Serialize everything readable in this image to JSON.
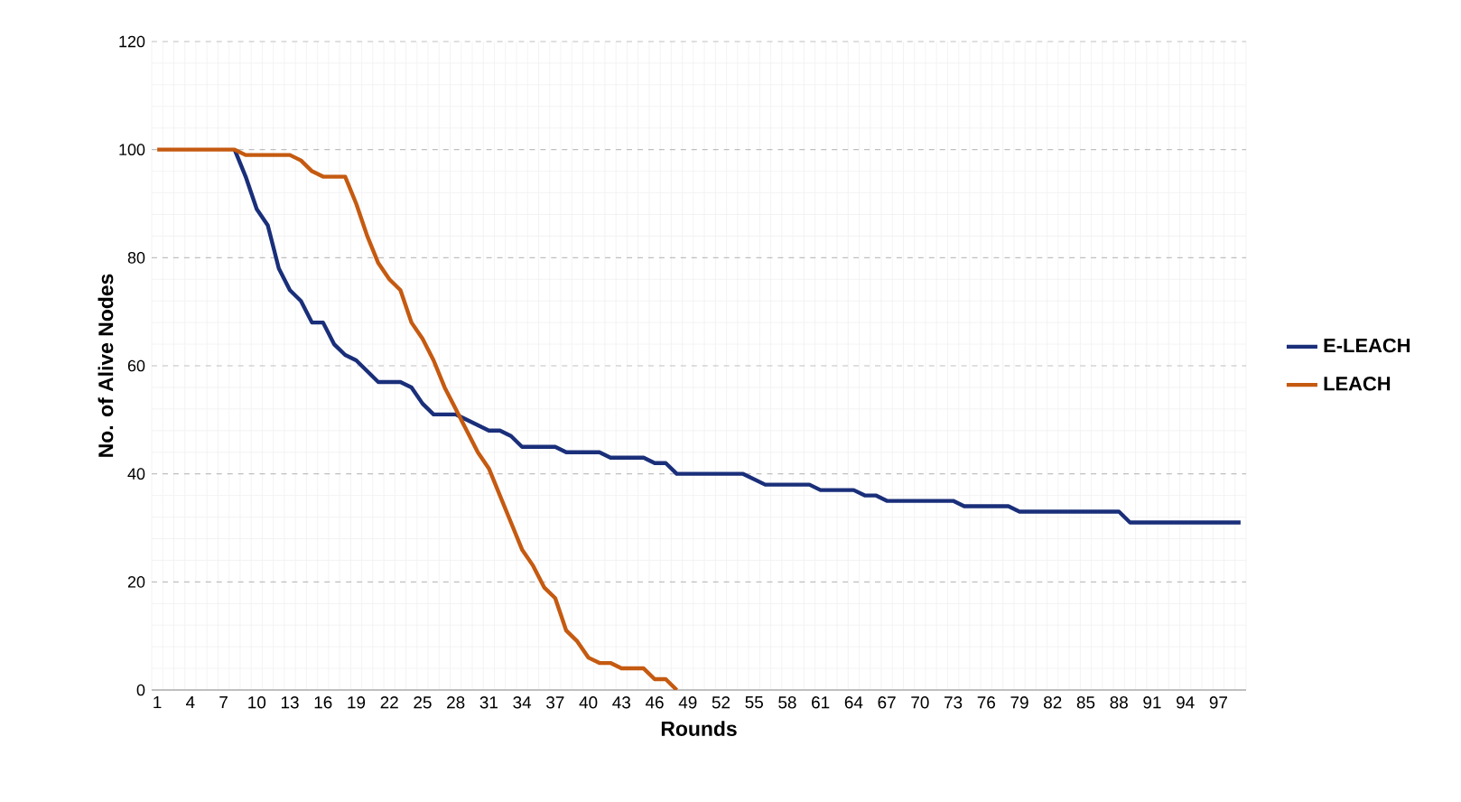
{
  "chart_data": {
    "type": "line",
    "xlabel": "Rounds",
    "ylabel": "No. of Alive Nodes",
    "categories": [
      "1",
      null,
      null,
      "4",
      null,
      null,
      "7",
      null,
      null,
      "10",
      null,
      null,
      "13",
      null,
      null,
      "16",
      null,
      null,
      "19",
      null,
      null,
      "22",
      null,
      null,
      "25",
      null,
      null,
      "28",
      null,
      null,
      "31",
      null,
      null,
      "34",
      null,
      null,
      "37",
      null,
      null,
      "40",
      null,
      null,
      "43",
      null,
      null,
      "46",
      null,
      null,
      "49",
      null,
      null,
      "52",
      null,
      null,
      "55",
      null,
      null,
      "58",
      null,
      null,
      "61",
      null,
      null,
      "64",
      null,
      null,
      "67",
      null,
      null,
      "70",
      null,
      null,
      "73",
      null,
      null,
      "76",
      null,
      null,
      "79",
      null,
      null,
      "82",
      null,
      null,
      "85",
      null,
      null,
      "88",
      null,
      null,
      "91",
      null,
      null,
      "94",
      null,
      null,
      "97",
      null,
      null
    ],
    "series": [
      {
        "name": "E-LEACH",
        "color": "#1a2f7a",
        "values": [
          null,
          null,
          null,
          null,
          null,
          null,
          null,
          100,
          95,
          89,
          86,
          78,
          74,
          72,
          68,
          68,
          64,
          62,
          61,
          59,
          57,
          57,
          57,
          56,
          53,
          51,
          51,
          51,
          50,
          49,
          48,
          48,
          47,
          45,
          45,
          45,
          45,
          44,
          44,
          44,
          44,
          43,
          43,
          43,
          43,
          42,
          42,
          40,
          40,
          40,
          40,
          40,
          40,
          40,
          39,
          38,
          38,
          38,
          38,
          38,
          37,
          37,
          37,
          37,
          36,
          36,
          35,
          35,
          35,
          35,
          35,
          35,
          35,
          34,
          34,
          34,
          34,
          34,
          33,
          33,
          33,
          33,
          33,
          33,
          33,
          33,
          33,
          33,
          31,
          31,
          31,
          31,
          31,
          31,
          31,
          31,
          31,
          31,
          31
        ]
      },
      {
        "name": "LEACH",
        "color": "#c55a11",
        "values": [
          100,
          100,
          100,
          100,
          100,
          100,
          100,
          100,
          99,
          99,
          99,
          99,
          99,
          98,
          96,
          95,
          95,
          95,
          90,
          84,
          79,
          76,
          74,
          68,
          65,
          61,
          56,
          52,
          48,
          44,
          41,
          36,
          31,
          26,
          23,
          19,
          17,
          11,
          9,
          6,
          5,
          5,
          4,
          4,
          4,
          2,
          2,
          0,
          null,
          null,
          null,
          null,
          null,
          null,
          null,
          null,
          null,
          null,
          null,
          null,
          null,
          null,
          null,
          null,
          null,
          null,
          null,
          null,
          null,
          null,
          null,
          null,
          null,
          null,
          null,
          null,
          null,
          null,
          null,
          null,
          null,
          null,
          null,
          null,
          null,
          null,
          null,
          null,
          null,
          null,
          null,
          null,
          null,
          null,
          null,
          null,
          null,
          null,
          null
        ]
      }
    ],
    "ylim": [
      0,
      120
    ],
    "yticks": [
      0,
      20,
      40,
      60,
      80,
      100,
      120
    ],
    "grid": true,
    "legend": "right",
    "marker": "none",
    "line_style": "solid"
  }
}
